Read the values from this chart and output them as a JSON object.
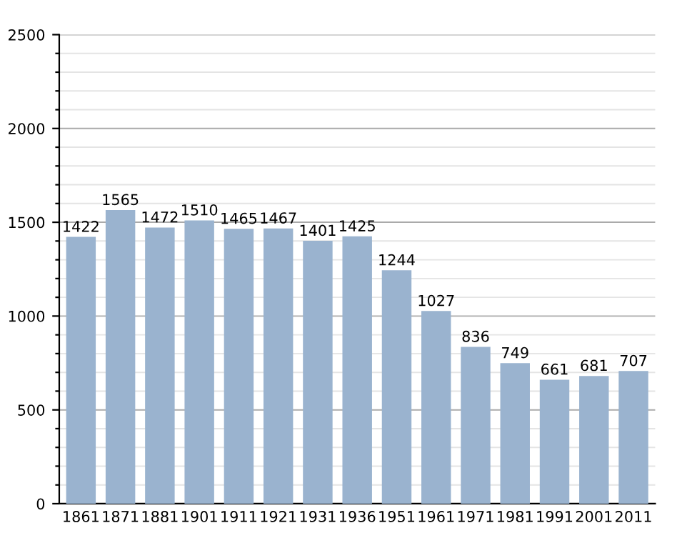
{
  "chart_data": {
    "type": "bar",
    "categories": [
      "1861",
      "1871",
      "1881",
      "1901",
      "1911",
      "1921",
      "1931",
      "1936",
      "1951",
      "1961",
      "1971",
      "1981",
      "1991",
      "2001",
      "2011"
    ],
    "values": [
      1422,
      1565,
      1472,
      1510,
      1465,
      1467,
      1401,
      1425,
      1244,
      1027,
      836,
      749,
      661,
      681,
      707
    ],
    "color": "#9ab3cf",
    "data_labels": true,
    "ylim": [
      0,
      2500
    ],
    "yticks": [
      0,
      {
        "value": 100,
        "label": null
      },
      {
        "value": 200,
        "label": null
      },
      {
        "value": 300,
        "label": null
      },
      {
        "value": 400,
        "label": null
      },
      500,
      {
        "value": 600,
        "label": null
      },
      {
        "value": 700,
        "label": null
      },
      {
        "value": 800,
        "label": null
      },
      {
        "value": 900,
        "label": null
      },
      1000,
      {
        "value": 1100,
        "label": null
      },
      {
        "value": 1200,
        "label": null
      },
      {
        "value": 1300,
        "label": null
      },
      {
        "value": 1400,
        "label": null
      },
      1500,
      {
        "value": 1600,
        "label": null
      },
      {
        "value": 1700,
        "label": null
      },
      {
        "value": 1800,
        "label": null
      },
      {
        "value": 1900,
        "label": null
      },
      2000,
      {
        "value": 2100,
        "label": null
      },
      {
        "value": 2200,
        "label": null
      },
      {
        "value": 2300,
        "label": null
      },
      {
        "value": 2400,
        "label": null
      },
      2500
    ],
    "grid": "y"
  }
}
